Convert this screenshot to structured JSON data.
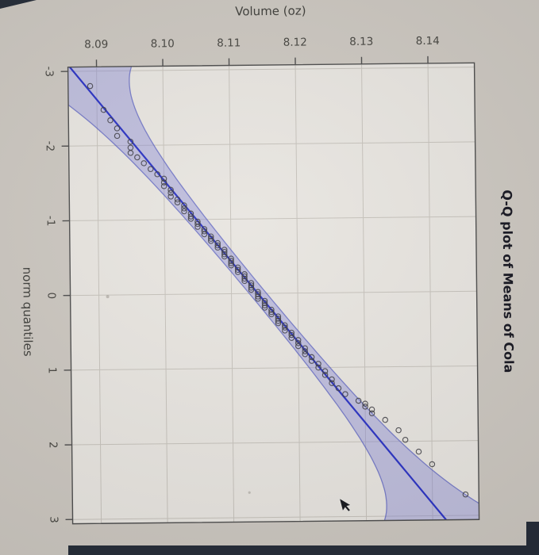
{
  "photo": {
    "background": "#ccc7c0",
    "bezel_color": "#232a36"
  },
  "plot": {
    "panel_color": "#e8e5e0",
    "grid_color": "#c6c2bb",
    "border_color": "#4c4c4c",
    "line_color": "#2a32c4",
    "envelope_fill": "#8486d6",
    "envelope_edge": "#5a60c0",
    "point_color": "#3a3a40",
    "tick_label_color": "#45443f",
    "axis_label_color": "#3e3e3a",
    "title_color": "#15151f"
  },
  "chart_data": {
    "type": "scatter",
    "title": "Q-Q plot of Means of Cola",
    "xlabel": "norm quantiles",
    "ylabel": "Volume (oz)",
    "xlim": [
      -3.06,
      3.06
    ],
    "ylim": [
      8.086,
      8.147
    ],
    "grid": true,
    "x_ticks": [
      -3,
      -2,
      -1,
      0,
      1,
      2,
      3
    ],
    "x_tick_labels": [
      "-3",
      "-2",
      "-1",
      "0",
      "1",
      "2",
      "3"
    ],
    "y_ticks": [
      8.09,
      8.1,
      8.11,
      8.12,
      8.13,
      8.14
    ],
    "y_tick_labels": [
      "8.09",
      "8.10",
      "8.11",
      "8.12",
      "8.13",
      "8.14"
    ],
    "reference_line": {
      "intercept": 8.114,
      "slope": 0.00917
    },
    "envelope": {
      "z": 1.96,
      "n": 300
    },
    "points": [
      [
        -2.8,
        8.089
      ],
      [
        -2.48,
        8.091
      ],
      [
        -2.34,
        8.092
      ],
      [
        -2.23,
        8.093
      ],
      [
        -2.13,
        8.093
      ],
      [
        -2.05,
        8.095
      ],
      [
        -1.97,
        8.095
      ],
      [
        -1.9,
        8.095
      ],
      [
        -1.84,
        8.096
      ],
      [
        -1.76,
        8.097
      ],
      [
        -1.68,
        8.098
      ],
      [
        -1.61,
        8.099
      ],
      [
        -1.55,
        8.1
      ],
      [
        -1.5,
        8.1
      ],
      [
        -1.45,
        8.1
      ],
      [
        -1.4,
        8.101
      ],
      [
        -1.36,
        8.101
      ],
      [
        -1.31,
        8.101
      ],
      [
        -1.27,
        8.102
      ],
      [
        -1.23,
        8.102
      ],
      [
        -1.19,
        8.103
      ],
      [
        -1.15,
        8.103
      ],
      [
        -1.11,
        8.103
      ],
      [
        -1.08,
        8.104
      ],
      [
        -1.04,
        8.104
      ],
      [
        -1.01,
        8.104
      ],
      [
        -0.97,
        8.105
      ],
      [
        -0.94,
        8.105
      ],
      [
        -0.9,
        8.105
      ],
      [
        -0.87,
        8.106
      ],
      [
        -0.84,
        8.106
      ],
      [
        -0.8,
        8.106
      ],
      [
        -0.77,
        8.107
      ],
      [
        -0.74,
        8.107
      ],
      [
        -0.71,
        8.107
      ],
      [
        -0.68,
        8.108
      ],
      [
        -0.65,
        8.108
      ],
      [
        -0.62,
        8.108
      ],
      [
        -0.59,
        8.109
      ],
      [
        -0.56,
        8.109
      ],
      [
        -0.53,
        8.109
      ],
      [
        -0.5,
        8.109
      ],
      [
        -0.47,
        8.11
      ],
      [
        -0.44,
        8.11
      ],
      [
        -0.41,
        8.11
      ],
      [
        -0.38,
        8.11
      ],
      [
        -0.35,
        8.111
      ],
      [
        -0.32,
        8.111
      ],
      [
        -0.29,
        8.111
      ],
      [
        -0.26,
        8.112
      ],
      [
        -0.23,
        8.112
      ],
      [
        -0.2,
        8.112
      ],
      [
        -0.17,
        8.112
      ],
      [
        -0.14,
        8.113
      ],
      [
        -0.11,
        8.113
      ],
      [
        -0.08,
        8.113
      ],
      [
        -0.05,
        8.113
      ],
      [
        -0.02,
        8.114
      ],
      [
        0.01,
        8.114
      ],
      [
        0.04,
        8.114
      ],
      [
        0.07,
        8.114
      ],
      [
        0.1,
        8.115
      ],
      [
        0.13,
        8.115
      ],
      [
        0.16,
        8.115
      ],
      [
        0.19,
        8.115
      ],
      [
        0.22,
        8.116
      ],
      [
        0.25,
        8.116
      ],
      [
        0.28,
        8.116
      ],
      [
        0.31,
        8.117
      ],
      [
        0.34,
        8.117
      ],
      [
        0.37,
        8.117
      ],
      [
        0.4,
        8.117
      ],
      [
        0.43,
        8.118
      ],
      [
        0.46,
        8.118
      ],
      [
        0.5,
        8.118
      ],
      [
        0.53,
        8.119
      ],
      [
        0.56,
        8.119
      ],
      [
        0.6,
        8.119
      ],
      [
        0.63,
        8.12
      ],
      [
        0.67,
        8.12
      ],
      [
        0.71,
        8.12
      ],
      [
        0.74,
        8.121
      ],
      [
        0.78,
        8.121
      ],
      [
        0.82,
        8.121
      ],
      [
        0.86,
        8.122
      ],
      [
        0.91,
        8.122
      ],
      [
        0.95,
        8.123
      ],
      [
        1.0,
        8.123
      ],
      [
        1.05,
        8.124
      ],
      [
        1.1,
        8.124
      ],
      [
        1.16,
        8.125
      ],
      [
        1.21,
        8.125
      ],
      [
        1.28,
        8.126
      ],
      [
        1.36,
        8.127
      ],
      [
        1.45,
        8.129
      ],
      [
        1.49,
        8.13
      ],
      [
        1.53,
        8.13
      ],
      [
        1.57,
        8.131
      ],
      [
        1.62,
        8.131
      ],
      [
        1.71,
        8.133
      ],
      [
        1.85,
        8.135
      ],
      [
        1.98,
        8.136
      ],
      [
        2.14,
        8.138
      ],
      [
        2.31,
        8.14
      ],
      [
        2.72,
        8.145
      ]
    ]
  }
}
